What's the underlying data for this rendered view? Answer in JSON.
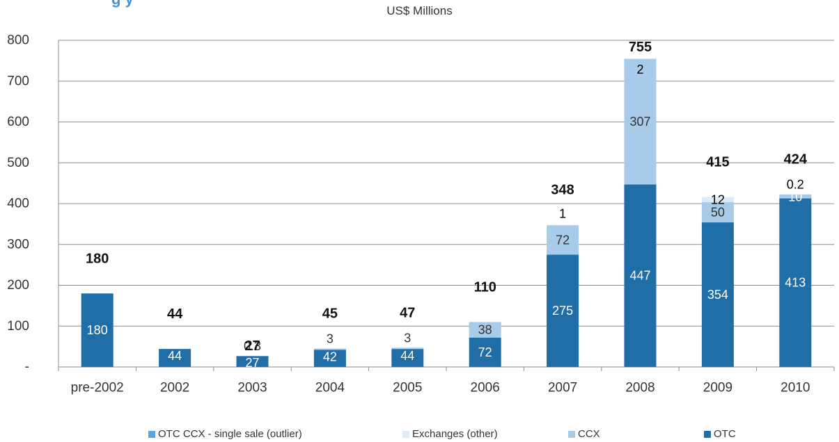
{
  "chart_data": {
    "type": "bar",
    "stacked": true,
    "title_partial": "g                                              y",
    "subtitle": "US$ Millions",
    "categories": [
      "pre-2002",
      "2002",
      "2003",
      "2004",
      "2005",
      "2006",
      "2007",
      "2008",
      "2009",
      "2010"
    ],
    "y_ticks": [
      "-",
      "100",
      "200",
      "300",
      "400",
      "500",
      "600",
      "700",
      "800"
    ],
    "ylim": [
      0,
      800
    ],
    "grid": true,
    "legend_position": "bottom",
    "series": [
      {
        "name": "OTC",
        "color": "#1f6ea8",
        "values": [
          180,
          44,
          27,
          42,
          44,
          72,
          275,
          447,
          354,
          413
        ],
        "labels": [
          "180",
          "44",
          "27",
          "42",
          "44",
          "72",
          "275",
          "447",
          "354",
          "413"
        ]
      },
      {
        "name": "CCX",
        "color": "#a7cbe8",
        "values": [
          0,
          0,
          0.3,
          3,
          3,
          38,
          72,
          307,
          50,
          10
        ],
        "labels": [
          "",
          "",
          "0.3",
          "3",
          "3",
          "38",
          "72",
          "307",
          "50",
          "10"
        ]
      },
      {
        "name": "Exchanges (other)",
        "color": "#deebf7",
        "values": [
          0,
          0,
          0,
          0,
          0,
          0,
          1,
          2,
          12,
          0.2
        ],
        "labels": [
          "",
          "",
          "",
          "",
          "",
          "",
          "1",
          "2",
          "12",
          "0.2"
        ]
      },
      {
        "name": "OTC CCX - single sale (outlier)",
        "color": "#5ca3dc",
        "values": [
          0,
          0,
          0,
          0,
          0,
          0,
          0,
          0,
          0,
          0
        ],
        "labels": [
          "",
          "",
          "",
          "",
          "",
          "",
          "",
          "",
          "",
          ""
        ]
      }
    ],
    "totals": [
      "180",
      "44",
      "27",
      "45",
      "47",
      "110",
      "348",
      "755",
      "415",
      "424"
    ],
    "legend_order": [
      "OTC CCX - single sale (outlier)",
      "Exchanges (other)",
      "CCX",
      "OTC"
    ]
  }
}
